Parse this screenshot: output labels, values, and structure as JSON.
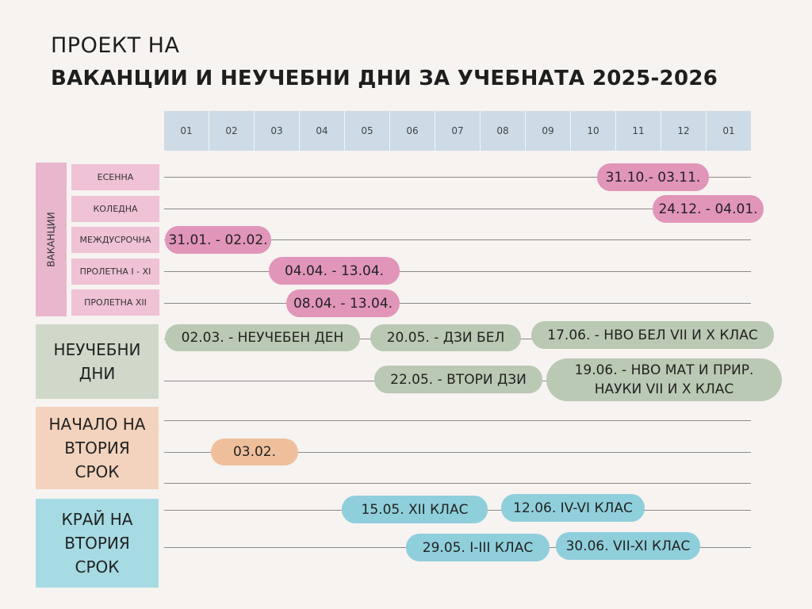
{
  "header": {
    "line1": "ПРОЕКТ НА",
    "line2": "ВАКАНЦИИ И НЕУЧЕБНИ ДНИ ЗА УЧЕБНАТА 2025-2026"
  },
  "months": [
    "01",
    "02",
    "03",
    "04",
    "05",
    "06",
    "07",
    "08",
    "09",
    "10",
    "11",
    "12",
    "01"
  ],
  "vacations": {
    "label": "ВАКАНЦИИ",
    "rows": [
      {
        "label": "ЕСЕННА",
        "date": "31.10.- 03.11."
      },
      {
        "label": "КОЛЕДНА",
        "date": "24.12. - 04.01."
      },
      {
        "label": "МЕЖДУСРОЧНА",
        "date": "31.01. - 02.02."
      },
      {
        "label": "ПРОЛЕТНА I - XI",
        "date": "04.04. - 13.04."
      },
      {
        "label": "ПРОЛЕТНА XII",
        "date": "08.04. - 13.04."
      }
    ]
  },
  "nonschool": {
    "label_line1": "НЕУЧЕБНИ",
    "label_line2": "ДНИ",
    "items": [
      "02.03. - НЕУЧЕБЕН ДЕН",
      "20.05. - ДЗИ БЕЛ",
      "17.06. - НВО БЕЛ VII И X КЛАС",
      "22.05. - ВТОРИ ДЗИ",
      "19.06. - НВО МАТ И ПРИР.",
      "НАУКИ VII И X КЛАС"
    ]
  },
  "term_start": {
    "label_line1": "НАЧАЛО НА",
    "label_line2": "ВТОРИЯ",
    "label_line3": "СРОК",
    "date": "03.02."
  },
  "term_end": {
    "label_line1": "КРАЙ НА",
    "label_line2": "ВТОРИЯ",
    "label_line3": "СРОК",
    "items": [
      "15.05. XII КЛАС",
      "12.06. IV-VI КЛАС",
      "29.05. I-III КЛАС",
      "30.06. VII-XI КЛАС"
    ]
  },
  "colors": {
    "vacation": "#e195b9",
    "nonschool": "#bac9b3",
    "term_start": "#efbf9c",
    "term_end": "#8fcfdb",
    "month_header": "#ccdbe6"
  }
}
